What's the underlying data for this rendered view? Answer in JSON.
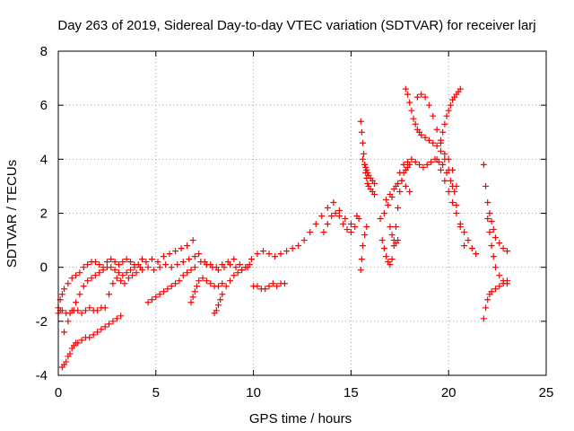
{
  "chart_data": {
    "type": "scatter",
    "title": "Day 263 of 2019, Sidereal Day-to-day VTEC variation (SDTVAR) for receiver larj",
    "xlabel": "GPS time / hours",
    "ylabel": "SDTVAR / TECUs",
    "xlim": [
      0,
      25
    ],
    "ylim": [
      -4,
      8
    ],
    "xticks": [
      0,
      5,
      10,
      15,
      20,
      25
    ],
    "yticks": [
      -4,
      -2,
      0,
      2,
      4,
      6,
      8
    ],
    "grid": true,
    "marker": "+",
    "color": "#ff0000",
    "series": [
      {
        "x": [
          0.0,
          0.1,
          0.2,
          0.3,
          0.5,
          0.7,
          0.9,
          1.1,
          1.3,
          1.5,
          1.7,
          1.9,
          2.1,
          2.3,
          2.5,
          2.7,
          2.9,
          3.1,
          3.3,
          3.5,
          3.7,
          3.9,
          4.2,
          4.5,
          4.8,
          5.1,
          5.4,
          5.7,
          6.0,
          6.3,
          6.6,
          6.9,
          7.2,
          7.5,
          7.8,
          8.1,
          8.4,
          8.7,
          9.0,
          9.3,
          9.6,
          9.9,
          10.2,
          10.5,
          10.8,
          11.1,
          11.4,
          11.7,
          12.0,
          12.3,
          12.6,
          12.9,
          13.2,
          13.5,
          13.8,
          14.1,
          14.4,
          14.7,
          15.0,
          15.3
        ],
        "y": [
          -1.5,
          -1.2,
          -1.0,
          -0.8,
          -0.6,
          -0.4,
          -0.3,
          -0.2,
          0.0,
          0.1,
          0.2,
          0.2,
          0.1,
          0.0,
          0.2,
          0.3,
          0.2,
          0.1,
          0.2,
          0.3,
          0.2,
          0.1,
          0.0,
          0.2,
          0.3,
          0.2,
          0.4,
          0.5,
          0.6,
          0.7,
          0.8,
          1.0,
          0.5,
          0.2,
          0.1,
          0.0,
          0.1,
          0.2,
          0.3,
          0.1,
          0.0,
          0.3,
          0.5,
          0.6,
          0.5,
          0.4,
          0.5,
          0.6,
          0.7,
          0.8,
          1.0,
          1.3,
          1.6,
          1.9,
          2.2,
          2.4,
          2.1,
          1.8,
          1.6,
          1.9
        ]
      },
      {
        "x": [
          0.0,
          0.1,
          0.2,
          0.4,
          0.6,
          0.8,
          1.0,
          1.2,
          1.4,
          1.6,
          1.8,
          2.0,
          2.2,
          2.4,
          2.6,
          2.8,
          3.0,
          3.2,
          3.4,
          3.6,
          3.8,
          4.0,
          4.3,
          4.6,
          4.9,
          5.2,
          5.5,
          5.8,
          6.1,
          6.4,
          6.7,
          7.0,
          7.3,
          7.6,
          7.9,
          8.2,
          8.5,
          8.8,
          9.1,
          9.4,
          9.7
        ],
        "y": [
          -1.7,
          -1.6,
          -1.6,
          -1.7,
          -1.7,
          -1.6,
          -1.6,
          -1.7,
          -1.6,
          -1.5,
          -1.6,
          -1.6,
          -1.5,
          -1.5,
          -1.0,
          -0.6,
          -0.4,
          -0.5,
          -0.6,
          -0.4,
          -0.3,
          -0.2,
          -0.1,
          0.0,
          -0.1,
          0.0,
          0.1,
          0.0,
          0.1,
          0.2,
          0.3,
          0.4,
          0.2,
          0.1,
          0.0,
          -0.1,
          0.0,
          0.1,
          0.0,
          -0.1,
          0.0
        ]
      },
      {
        "x": [
          0.2,
          0.3,
          0.4,
          0.5,
          0.6,
          0.7,
          0.8,
          0.9,
          1.0,
          1.2,
          1.4,
          1.6,
          1.8,
          2.0,
          2.2,
          2.4,
          2.6,
          2.8,
          3.0,
          3.2
        ],
        "y": [
          -3.7,
          -3.6,
          -3.5,
          -3.3,
          -3.2,
          -3.0,
          -2.9,
          -2.8,
          -2.8,
          -2.7,
          -2.6,
          -2.6,
          -2.5,
          -2.4,
          -2.3,
          -2.2,
          -2.1,
          -2.0,
          -1.9,
          -1.8
        ]
      },
      {
        "x": [
          0.3,
          0.5,
          0.7,
          0.9,
          1.1,
          1.3,
          1.5,
          1.7,
          1.9,
          2.1,
          2.3,
          2.5,
          2.7,
          2.9,
          3.1,
          3.3,
          3.5,
          3.7,
          3.9,
          4.1,
          4.3
        ],
        "y": [
          -2.4,
          -2.0,
          -1.6,
          -1.3,
          -1.0,
          -0.7,
          -0.5,
          -0.4,
          -0.3,
          -0.2,
          -0.1,
          0.0,
          0.0,
          -0.1,
          -0.2,
          -0.3,
          -0.2,
          -0.1,
          0.0,
          0.1,
          0.3
        ]
      },
      {
        "x": [
          4.6,
          4.8,
          5.0,
          5.2,
          5.4,
          5.6,
          5.8,
          6.0,
          6.2,
          6.4,
          6.6,
          6.8,
          7.0
        ],
        "y": [
          -1.3,
          -1.2,
          -1.1,
          -1.0,
          -0.9,
          -0.8,
          -0.7,
          -0.6,
          -0.5,
          -0.3,
          -0.2,
          -0.1,
          0.0
        ]
      },
      {
        "x": [
          6.8,
          6.9,
          7.0,
          7.1,
          7.2,
          7.4,
          7.6,
          7.8,
          8.0,
          8.2,
          8.4
        ],
        "y": [
          -1.3,
          -1.1,
          -0.9,
          -0.7,
          -0.5,
          -0.4,
          -0.5,
          -0.6,
          -0.7,
          -0.7,
          -0.6
        ]
      },
      {
        "x": [
          8.0,
          8.1,
          8.2,
          8.3,
          8.4,
          8.6,
          8.8,
          9.0,
          9.2,
          9.4,
          9.6,
          9.8
        ],
        "y": [
          -1.7,
          -1.6,
          -1.4,
          -1.2,
          -1.0,
          -0.7,
          -0.5,
          -0.3,
          -0.2,
          -0.1,
          0.0,
          0.1
        ]
      },
      {
        "x": [
          10.0,
          10.2,
          10.4,
          10.6,
          10.8,
          11.0,
          11.2,
          11.4,
          11.6
        ],
        "y": [
          -0.7,
          -0.7,
          -0.8,
          -0.8,
          -0.7,
          -0.6,
          -0.7,
          -0.6,
          -0.6
        ]
      },
      {
        "x": [
          13.6,
          13.8,
          14.0,
          14.2,
          14.4,
          14.6,
          14.8,
          15.0,
          15.2,
          15.4
        ],
        "y": [
          1.3,
          1.6,
          1.9,
          2.0,
          1.9,
          1.6,
          1.4,
          1.3,
          1.5,
          1.8
        ]
      },
      {
        "x": [
          15.5,
          15.55,
          15.6,
          15.65,
          15.7,
          15.75,
          15.8,
          15.85,
          15.9,
          16.0,
          16.1,
          16.2
        ],
        "y": [
          5.4,
          5.0,
          4.6,
          4.2,
          3.8,
          3.5,
          3.3,
          3.1,
          3.0,
          2.9,
          2.8,
          2.7
        ]
      },
      {
        "x": [
          15.6,
          15.7,
          15.75,
          15.8,
          15.85,
          15.9,
          16.0,
          16.1,
          16.2
        ],
        "y": [
          4.0,
          3.8,
          3.7,
          3.6,
          3.5,
          3.4,
          3.3,
          3.2,
          3.1
        ]
      },
      {
        "x": [
          15.5,
          15.55,
          15.6,
          15.7,
          15.8
        ],
        "y": [
          -0.1,
          0.3,
          0.8,
          1.2,
          1.5
        ]
      },
      {
        "x": [
          16.6,
          16.7,
          16.8,
          16.9,
          17.0,
          17.1,
          17.2,
          17.3,
          17.4,
          17.5,
          17.6,
          17.7,
          17.8,
          17.9,
          18.0
        ],
        "y": [
          1.0,
          0.7,
          0.4,
          0.2,
          0.1,
          0.3,
          0.8,
          1.5,
          2.2,
          2.8,
          3.2,
          3.5,
          3.6,
          3.7,
          3.8
        ]
      },
      {
        "x": [
          16.5,
          16.7,
          16.9,
          17.1,
          17.3,
          17.5,
          17.7,
          17.9,
          18.1,
          18.3,
          18.5,
          18.7,
          18.9,
          19.1,
          19.3,
          19.5,
          19.7,
          19.9,
          20.1,
          20.3
        ],
        "y": [
          1.8,
          2.0,
          2.3,
          2.6,
          3.0,
          3.5,
          3.8,
          3.9,
          4.0,
          3.9,
          3.8,
          3.7,
          3.8,
          3.9,
          4.0,
          3.9,
          3.8,
          3.5,
          3.2,
          2.8
        ]
      },
      {
        "x": [
          16.8,
          17.0,
          17.2,
          17.4,
          17.6,
          17.8,
          18.0
        ],
        "y": [
          2.5,
          2.7,
          2.9,
          3.1,
          3.2,
          3.0,
          2.8
        ]
      },
      {
        "x": [
          17.0,
          17.1,
          17.2,
          17.3,
          17.4
        ],
        "y": [
          1.5,
          1.2,
          1.0,
          0.9,
          1.0
        ]
      },
      {
        "x": [
          17.8,
          17.9,
          18.0,
          18.1,
          18.2,
          18.3,
          18.4,
          18.5,
          18.6,
          18.8,
          19.0,
          19.2,
          19.4,
          19.6,
          19.8,
          20.0,
          20.2,
          20.4,
          20.6,
          20.8
        ],
        "y": [
          6.6,
          6.4,
          6.1,
          5.8,
          5.5,
          5.3,
          5.1,
          5.0,
          4.9,
          4.8,
          4.7,
          4.6,
          4.5,
          4.3,
          4.0,
          3.6,
          3.0,
          2.3,
          1.5,
          0.8
        ]
      },
      {
        "x": [
          18.4,
          18.6,
          18.8,
          19.0,
          19.2,
          19.4,
          19.6,
          19.8,
          20.0,
          20.2,
          20.4
        ],
        "y": [
          6.3,
          6.4,
          6.3,
          6.0,
          5.6,
          5.1,
          4.6,
          4.2,
          4.0,
          3.6,
          3.0
        ]
      },
      {
        "x": [
          19.6,
          19.7,
          19.8,
          19.9,
          20.0,
          20.1,
          20.2,
          20.3,
          20.4,
          20.5,
          20.6
        ],
        "y": [
          4.7,
          5.0,
          5.3,
          5.6,
          5.8,
          6.0,
          6.2,
          6.3,
          6.4,
          6.5,
          6.6
        ]
      },
      {
        "x": [
          19.4,
          19.6,
          19.8,
          20.0,
          20.2,
          20.4,
          20.6,
          20.8,
          21.0,
          21.2,
          21.4
        ],
        "y": [
          4.0,
          3.6,
          3.2,
          2.8,
          2.4,
          2.0,
          1.6,
          1.3,
          1.0,
          0.7,
          0.5
        ]
      },
      {
        "x": [
          21.8,
          21.9,
          22.0,
          22.1,
          22.2,
          22.3,
          22.4,
          22.6,
          22.8,
          23.0
        ],
        "y": [
          3.8,
          3.0,
          2.4,
          2.0,
          1.7,
          1.4,
          1.1,
          0.9,
          0.7,
          0.6
        ]
      },
      {
        "x": [
          21.8,
          21.9,
          22.0,
          22.1,
          22.2,
          22.4,
          22.6,
          22.8,
          23.0
        ],
        "y": [
          -1.9,
          -1.5,
          -1.2,
          -1.0,
          -0.9,
          -0.8,
          -0.7,
          -0.6,
          -0.5
        ]
      },
      {
        "x": [
          22.0,
          22.1,
          22.2,
          22.3,
          22.4,
          22.6,
          22.8,
          23.0
        ],
        "y": [
          1.8,
          1.3,
          0.8,
          0.4,
          0.0,
          -0.3,
          -0.5,
          -0.6
        ]
      }
    ]
  }
}
